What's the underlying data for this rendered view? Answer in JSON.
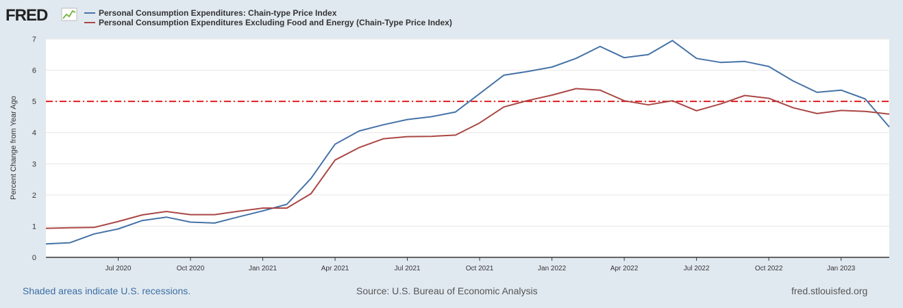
{
  "brand": {
    "logo_text": "FRED",
    "logo_icon": "chart-trend-icon"
  },
  "footer": {
    "recession_note": "Shaded areas indicate U.S. recessions.",
    "source": "Source: U.S. Bureau of Economic Analysis",
    "url": "fred.stlouisfed.org"
  },
  "chart_data": {
    "type": "line",
    "title": "",
    "xlabel": "",
    "ylabel": "Percent Change from Year Ago",
    "ylim": [
      0,
      7
    ],
    "y_ticks": [
      "0",
      "1",
      "2",
      "3",
      "4",
      "5",
      "6",
      "7"
    ],
    "x_start": "Apr 2020",
    "x_end": "Apr 2023",
    "x_tick_labels": [
      "Jul 2020",
      "Oct 2020",
      "Jan 2021",
      "Apr 2021",
      "Jul 2021",
      "Oct 2021",
      "Jan 2022",
      "Apr 2022",
      "Jul 2022",
      "Oct 2022",
      "Jan 2023"
    ],
    "x_tick_month_index": [
      3,
      6,
      9,
      12,
      15,
      18,
      21,
      24,
      27,
      30,
      33
    ],
    "grid": true,
    "reference_line": {
      "value": 5,
      "color": "#e31a1c",
      "style": "dash-dot"
    },
    "legend_position": "top-left",
    "series": [
      {
        "name": "Personal Consumption Expenditures: Chain-type Price Index",
        "color": "#4572a7",
        "values": [
          0.43,
          0.47,
          0.75,
          0.91,
          1.18,
          1.29,
          1.13,
          1.1,
          1.3,
          1.49,
          1.7,
          2.53,
          3.63,
          4.05,
          4.25,
          4.42,
          4.51,
          4.66,
          5.25,
          5.84,
          5.96,
          6.1,
          6.38,
          6.76,
          6.4,
          6.5,
          6.95,
          6.38,
          6.25,
          6.28,
          6.12,
          5.66,
          5.29,
          5.36,
          5.08,
          4.18
        ]
      },
      {
        "name": "Personal Consumption Expenditures Excluding Food and Energy (Chain-Type Price Index)",
        "color": "#aa4643",
        "values": [
          0.93,
          0.95,
          0.96,
          1.15,
          1.36,
          1.47,
          1.37,
          1.37,
          1.48,
          1.58,
          1.58,
          2.04,
          3.12,
          3.52,
          3.8,
          3.87,
          3.88,
          3.92,
          4.31,
          4.82,
          5.03,
          5.2,
          5.41,
          5.36,
          5.02,
          4.89,
          5.02,
          4.7,
          4.92,
          5.19,
          5.1,
          4.8,
          4.61,
          4.71,
          4.68,
          4.59
        ]
      }
    ]
  }
}
